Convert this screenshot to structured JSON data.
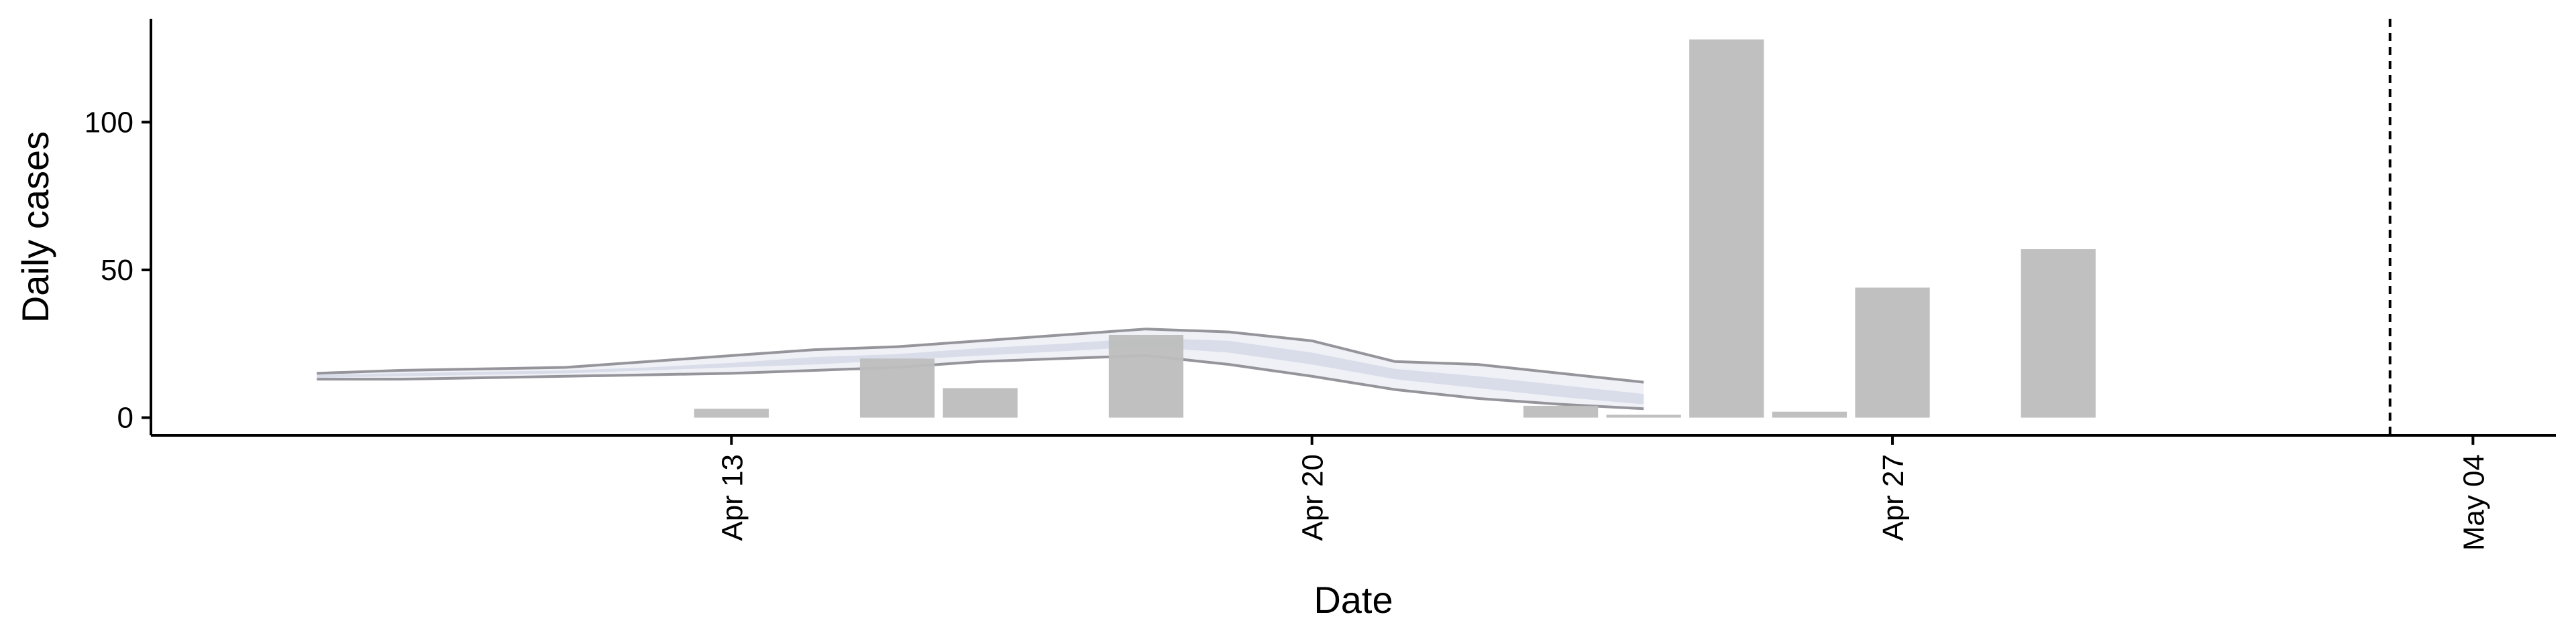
{
  "chart_data": {
    "type": "bar",
    "xlabel": "Date",
    "ylabel": "Daily cases",
    "x_range": [
      "2020-04-06",
      "2020-05-05"
    ],
    "ylim": [
      -6,
      135
    ],
    "x_ticks": [
      {
        "date": "2020-04-13",
        "label": "Apr 13"
      },
      {
        "date": "2020-04-20",
        "label": "Apr 20"
      },
      {
        "date": "2020-04-27",
        "label": "Apr 27"
      },
      {
        "date": "2020-05-04",
        "label": "May 04"
      }
    ],
    "y_ticks": [
      {
        "value": 0,
        "label": "0"
      },
      {
        "value": 50,
        "label": "50"
      },
      {
        "value": 100,
        "label": "100"
      }
    ],
    "bars": [
      {
        "date": "2020-04-13",
        "value": 3
      },
      {
        "date": "2020-04-15",
        "value": 20
      },
      {
        "date": "2020-04-16",
        "value": 10
      },
      {
        "date": "2020-04-18",
        "value": 28
      },
      {
        "date": "2020-04-23",
        "value": 4
      },
      {
        "date": "2020-04-24",
        "value": 1
      },
      {
        "date": "2020-04-25",
        "value": 128
      },
      {
        "date": "2020-04-26",
        "value": 2
      },
      {
        "date": "2020-04-27",
        "value": 44
      },
      {
        "date": "2020-04-29",
        "value": 57
      }
    ],
    "bands": [
      {
        "kind": "outer",
        "dates": [
          "2020-04-08",
          "2020-04-09",
          "2020-04-10",
          "2020-04-11",
          "2020-04-12",
          "2020-04-13",
          "2020-04-14",
          "2020-04-15",
          "2020-04-16",
          "2020-04-17",
          "2020-04-18",
          "2020-04-19",
          "2020-04-20",
          "2020-04-21",
          "2020-04-22",
          "2020-04-23",
          "2020-04-24"
        ],
        "lower": [
          13,
          13,
          13.5,
          14,
          14.5,
          15,
          16,
          17,
          19,
          20,
          21,
          18,
          14,
          9.5,
          6.5,
          4.5,
          3
        ],
        "upper": [
          15,
          16,
          16.5,
          17,
          19,
          21,
          23,
          24,
          26,
          28,
          30,
          29,
          26,
          19,
          18,
          15,
          12
        ]
      },
      {
        "kind": "inner",
        "dates": [
          "2020-04-08",
          "2020-04-09",
          "2020-04-10",
          "2020-04-11",
          "2020-04-12",
          "2020-04-13",
          "2020-04-14",
          "2020-04-15",
          "2020-04-16",
          "2020-04-17",
          "2020-04-18",
          "2020-04-19",
          "2020-04-20",
          "2020-04-21",
          "2020-04-22",
          "2020-04-23",
          "2020-04-24"
        ],
        "lower": [
          13.5,
          14,
          14.5,
          15,
          16,
          17,
          18,
          19.5,
          21,
          22.5,
          24,
          22,
          18,
          13,
          10,
          7,
          4.5
        ],
        "upper": [
          14.5,
          15,
          15.5,
          16,
          17,
          18.5,
          20.5,
          21.5,
          23.5,
          25,
          27,
          26,
          22,
          16.5,
          14,
          11,
          8
        ]
      }
    ],
    "forecast_date": "2020-05-03",
    "colors": {
      "bars": "#bdbdbd",
      "band_outer": "#eceef5",
      "band_inner": "#d6d9e8",
      "band_edge": "#8a8a90",
      "forecast_line": "#000000"
    }
  }
}
